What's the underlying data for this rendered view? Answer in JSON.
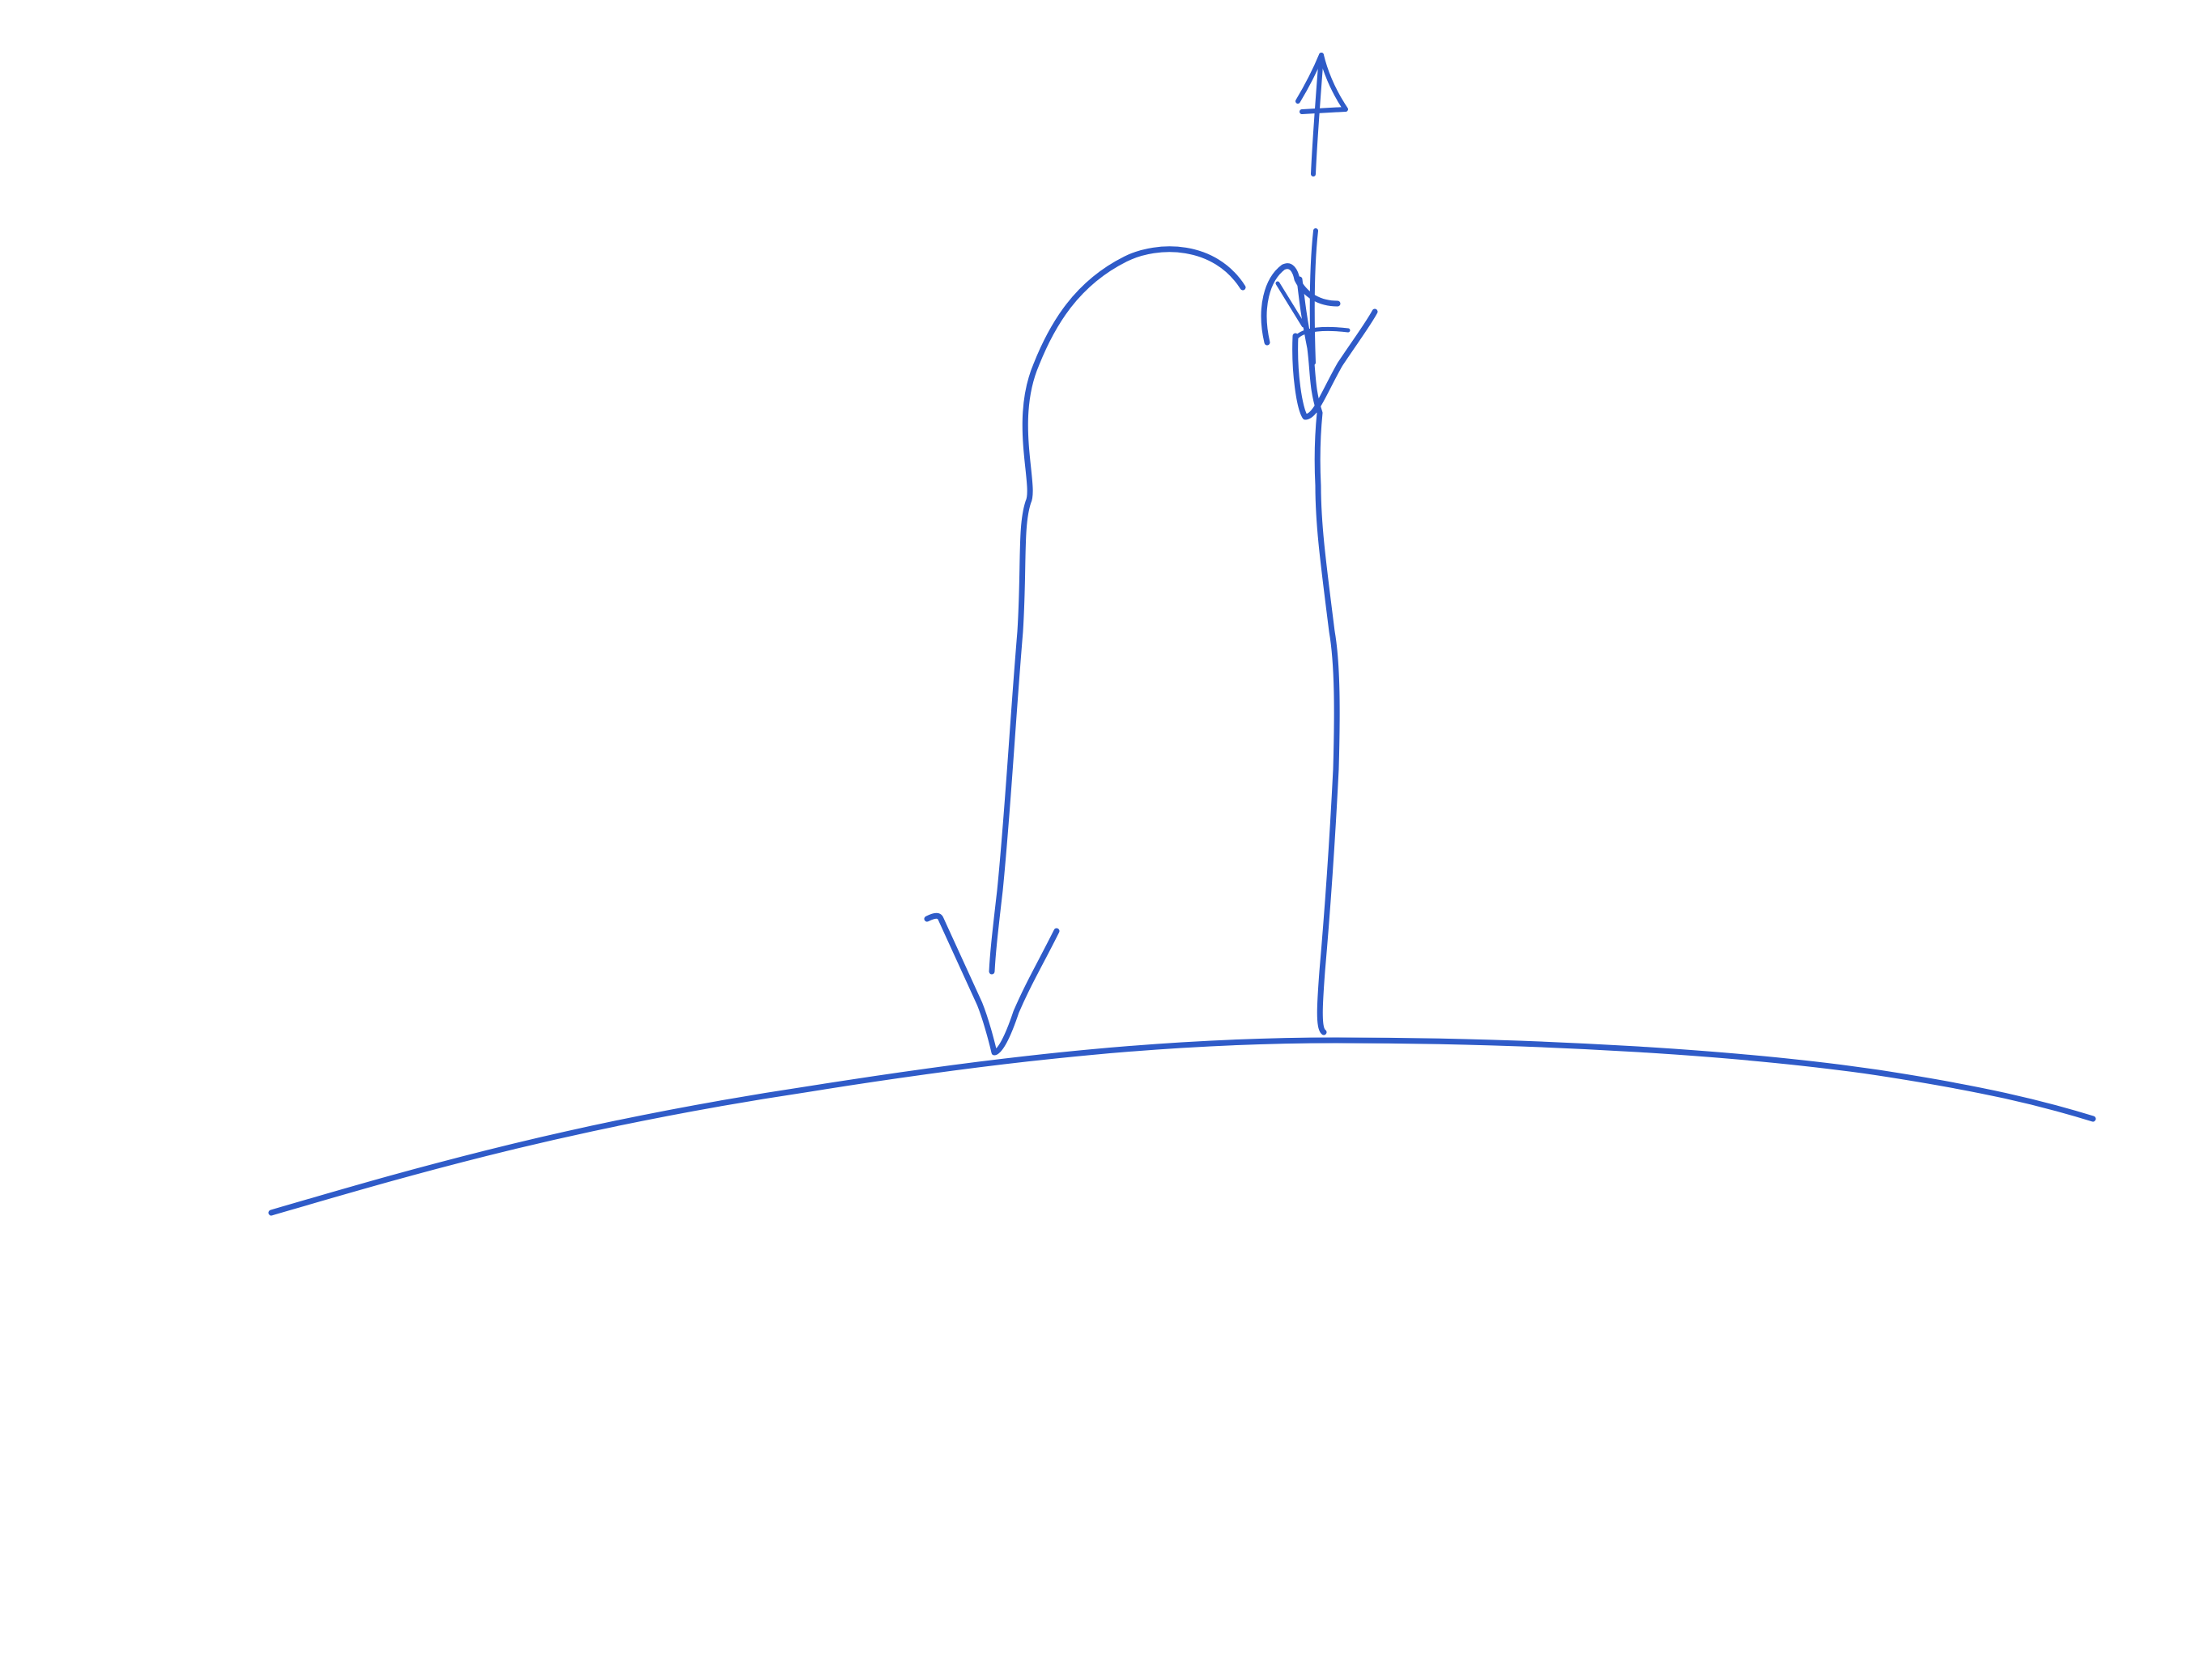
{
  "canvas": {
    "background_color": "#ffffff",
    "ink_color": "#2f5bc8"
  },
  "strokes": [
    {
      "name": "ground-curve",
      "description_icon": "curved-surface-line"
    },
    {
      "name": "descending-arrow",
      "description_icon": "down-arrow"
    },
    {
      "name": "ascending-arrow-with-hook",
      "description_icon": "up-arrow"
    },
    {
      "name": "legend-up-arrow",
      "description_icon": "small-up-arrow"
    },
    {
      "name": "legend-down-arrow",
      "description_icon": "small-down-arrow"
    }
  ]
}
